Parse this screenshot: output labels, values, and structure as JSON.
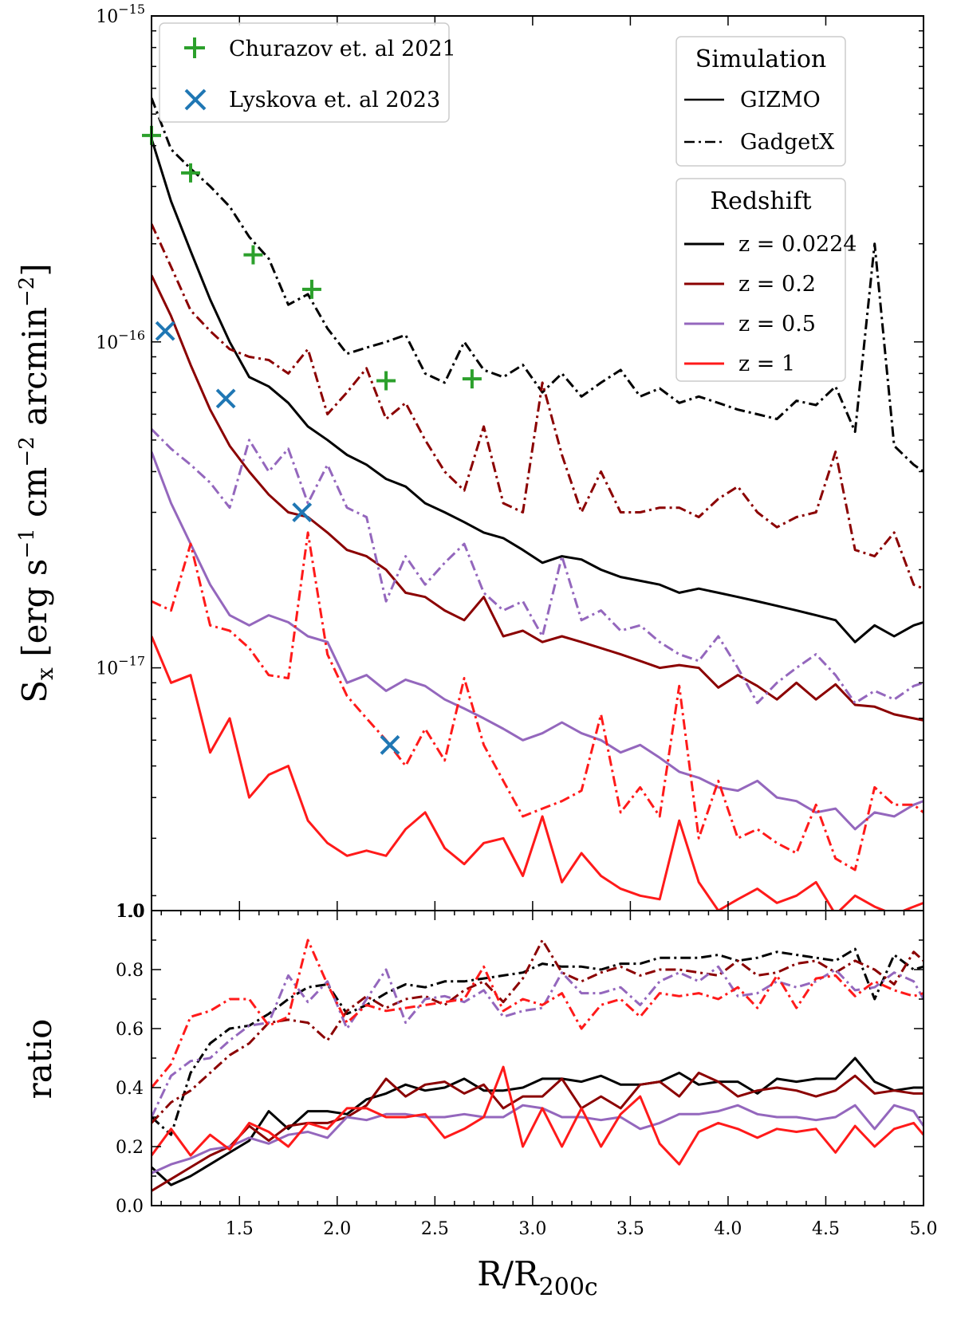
{
  "chart_data": [
    {
      "type": "line",
      "panel": "top",
      "yscale": "log",
      "xlabel": "R/R200c",
      "xlabel_main": "R/R",
      "xlabel_sub": "200c",
      "ylabel": "Sx [erg s^-1 cm^-2 arcmin^-2]",
      "ylabel_parts": {
        "s": "S",
        "s_sub": "x",
        "open": " [erg s",
        "exp1": "−1",
        "cm": " cm",
        "exp2": "−2",
        "arcmin": " arcmin",
        "exp3": "−2",
        "close": "]"
      },
      "xlim": [
        1.05,
        5.0
      ],
      "ylim": [
        1.8e-18,
        1e-15
      ],
      "yticks": [
        {
          "value": 1e-15,
          "base": "10",
          "exp": "−15"
        },
        {
          "value": 1e-16,
          "base": "10",
          "exp": "−16"
        },
        {
          "value": 1e-17,
          "base": "10",
          "exp": "−17"
        },
        {
          "value": 1.8e-18,
          "label": "1.0"
        }
      ],
      "x": [
        1.05,
        1.15,
        1.25,
        1.35,
        1.45,
        1.55,
        1.65,
        1.75,
        1.85,
        1.95,
        2.05,
        2.15,
        2.25,
        2.35,
        2.45,
        2.55,
        2.65,
        2.75,
        2.85,
        2.95,
        3.05,
        3.15,
        3.25,
        3.35,
        3.45,
        3.55,
        3.65,
        3.75,
        3.85,
        3.95,
        4.05,
        4.15,
        4.25,
        4.35,
        4.45,
        4.55,
        4.65,
        4.75,
        4.85,
        4.95,
        5.0
      ],
      "series": [
        {
          "name": "GIZMO z = 0.0224",
          "sim": "GIZMO",
          "redshift": "z = 0.0224",
          "color": "#000000",
          "dash": "solid",
          "values": [
            4.2e-16,
            2.7e-16,
            1.9e-16,
            1.35e-16,
            1e-16,
            7.8e-17,
            7.3e-17,
            6.5e-17,
            5.5e-17,
            5e-17,
            4.5e-17,
            4.2e-17,
            3.8e-17,
            3.6e-17,
            3.2e-17,
            3e-17,
            2.8e-17,
            2.6e-17,
            2.5e-17,
            2.3e-17,
            2.1e-17,
            2.2e-17,
            2.15e-17,
            2e-17,
            1.9e-17,
            1.85e-17,
            1.8e-17,
            1.7e-17,
            1.75e-17,
            1.7e-17,
            1.65e-17,
            1.6e-17,
            1.55e-17,
            1.5e-17,
            1.45e-17,
            1.4e-17,
            1.2e-17,
            1.35e-17,
            1.25e-17,
            1.35e-17,
            1.38e-17
          ]
        },
        {
          "name": "GadgetX z = 0.0224",
          "sim": "GadgetX",
          "redshift": "z = 0.0224",
          "color": "#000000",
          "dash": "dashdot",
          "values": [
            5.6e-16,
            3.9e-16,
            3.4e-16,
            3e-16,
            2.6e-16,
            2.1e-16,
            1.8e-16,
            1.3e-16,
            1.4e-16,
            1.1e-16,
            9.2e-17,
            9.6e-17,
            1e-16,
            1.05e-16,
            8e-17,
            7.5e-17,
            1e-16,
            8.2e-17,
            7.8e-17,
            8.5e-17,
            7e-17,
            8e-17,
            6.8e-17,
            7.5e-17,
            8.2e-17,
            6.8e-17,
            7.2e-17,
            6.5e-17,
            6.8e-17,
            6.5e-17,
            6.2e-17,
            6e-17,
            5.8e-17,
            6.6e-17,
            6.4e-17,
            7.3e-17,
            5.3e-17,
            2e-16,
            4.8e-17,
            4.2e-17,
            4e-17
          ]
        },
        {
          "name": "GIZMO z = 0.2",
          "sim": "GIZMO",
          "redshift": "z = 0.2",
          "color": "#8b0000",
          "dash": "solid",
          "values": [
            1.6e-16,
            1.2e-16,
            8.5e-17,
            6.2e-17,
            4.8e-17,
            4e-17,
            3.4e-17,
            3e-17,
            2.9e-17,
            2.6e-17,
            2.3e-17,
            2.2e-17,
            2e-17,
            1.7e-17,
            1.65e-17,
            1.5e-17,
            1.4e-17,
            1.65e-17,
            1.25e-17,
            1.3e-17,
            1.2e-17,
            1.25e-17,
            1.2e-17,
            1.15e-17,
            1.1e-17,
            1.05e-17,
            1e-17,
            1.02e-17,
            1e-17,
            8.7e-18,
            9.5e-18,
            8.8e-18,
            8e-18,
            9e-18,
            8e-18,
            8.9e-18,
            7.7e-18,
            7.6e-18,
            7.2e-18,
            7e-18,
            6.9e-18
          ]
        },
        {
          "name": "GadgetX z = 0.2",
          "sim": "GadgetX",
          "redshift": "z = 0.2",
          "color": "#8b0000",
          "dash": "dashdot",
          "values": [
            2.3e-16,
            1.7e-16,
            1.25e-16,
            1.08e-16,
            9.5e-17,
            9e-17,
            8.8e-17,
            8e-17,
            9.5e-17,
            6e-17,
            7e-17,
            8.3e-17,
            5.8e-17,
            6.5e-17,
            5e-17,
            4e-17,
            3.5e-17,
            5.5e-17,
            3.2e-17,
            3e-17,
            7.5e-17,
            4.5e-17,
            3e-17,
            4e-17,
            3e-17,
            3e-17,
            3.1e-17,
            3.1e-17,
            2.9e-17,
            3.3e-17,
            3.6e-17,
            3e-17,
            2.7e-17,
            2.9e-17,
            3e-17,
            4.6e-17,
            2.3e-17,
            2.2e-17,
            2.6e-17,
            1.8e-17,
            1.75e-17
          ]
        },
        {
          "name": "GIZMO z = 0.5",
          "sim": "GIZMO",
          "redshift": "z = 0.5",
          "color": "#9467bd",
          "dash": "solid",
          "values": [
            4.6e-17,
            3.2e-17,
            2.4e-17,
            1.8e-17,
            1.45e-17,
            1.35e-17,
            1.45e-17,
            1.38e-17,
            1.25e-17,
            1.2e-17,
            9e-18,
            9.5e-18,
            8.5e-18,
            9.2e-18,
            8.8e-18,
            8e-18,
            7.5e-18,
            7e-18,
            6.5e-18,
            6e-18,
            6.3e-18,
            6.8e-18,
            6.3e-18,
            6e-18,
            5.5e-18,
            5.8e-18,
            5.3e-18,
            4.8e-18,
            4.6e-18,
            4.3e-18,
            4.2e-18,
            4.5e-18,
            4e-18,
            3.9e-18,
            3.6e-18,
            3.7e-18,
            3.2e-18,
            3.6e-18,
            3.5e-18,
            3.8e-18,
            3.9e-18
          ]
        },
        {
          "name": "GadgetX z = 0.5",
          "sim": "GadgetX",
          "redshift": "z = 0.5",
          "color": "#9467bd",
          "dash": "dashdot",
          "values": [
            5.4e-17,
            4.7e-17,
            4.2e-17,
            3.7e-17,
            3.1e-17,
            5e-17,
            4e-17,
            4.7e-17,
            3.2e-17,
            4.2e-17,
            3.1e-17,
            2.9e-17,
            1.6e-17,
            2.2e-17,
            1.8e-17,
            2.1e-17,
            2.4e-17,
            1.7e-17,
            1.5e-17,
            1.6e-17,
            1.25e-17,
            2.2e-17,
            1.4e-17,
            1.5e-17,
            1.3e-17,
            1.35e-17,
            1.2e-17,
            1.1e-17,
            1.05e-17,
            1.25e-17,
            1e-17,
            7.8e-18,
            9e-18,
            1e-17,
            1.1e-17,
            9.5e-18,
            7.8e-18,
            8.5e-18,
            8e-18,
            8.8e-18,
            9e-18
          ]
        },
        {
          "name": "GIZMO z = 1",
          "sim": "GIZMO",
          "redshift": "z = 1",
          "color": "#ff1a1a",
          "dash": "solid",
          "values": [
            1.25e-17,
            9e-18,
            9.5e-18,
            5.5e-18,
            7e-18,
            4e-18,
            4.7e-18,
            5e-18,
            3.4e-18,
            2.9e-18,
            2.65e-18,
            2.75e-18,
            2.65e-18,
            3.2e-18,
            3.6e-18,
            2.8e-18,
            2.5e-18,
            2.9e-18,
            3e-18,
            2.3e-18,
            3.5e-18,
            2.2e-18,
            2.7e-18,
            2.3e-18,
            2.1e-18,
            2e-18,
            1.95e-18,
            3.4e-18,
            2.2e-18,
            1.8e-18,
            1.95e-18,
            2.1e-18,
            1.9e-18,
            2e-18,
            2.2e-18,
            1.75e-18,
            2e-18,
            1.85e-18,
            1.75e-18,
            1.85e-18,
            1.9e-18
          ]
        },
        {
          "name": "GadgetX z = 1",
          "sim": "GadgetX",
          "redshift": "z = 1",
          "color": "#ff1a1a",
          "dash": "dashdot",
          "values": [
            1.6e-17,
            1.5e-17,
            2.4e-17,
            1.35e-17,
            1.3e-17,
            1.15e-17,
            9.5e-18,
            9.3e-18,
            2.6e-17,
            1.1e-17,
            8.2e-18,
            7e-18,
            6e-18,
            5e-18,
            6.5e-18,
            5.2e-18,
            9.3e-18,
            5.8e-18,
            4.5e-18,
            3.5e-18,
            3.7e-18,
            3.9e-18,
            4.2e-18,
            7.2e-18,
            3.6e-18,
            4.3e-18,
            3.5e-18,
            8.8e-18,
            3e-18,
            4.5e-18,
            3e-18,
            3.2e-18,
            2.9e-18,
            2.7e-18,
            3.8e-18,
            2.6e-18,
            2.4e-18,
            4.3e-18,
            3.8e-18,
            3.8e-18,
            3.6e-18
          ]
        }
      ],
      "observations": [
        {
          "name": "Churazov et. al 2021",
          "marker": "plus",
          "color": "#2ca02c",
          "x": [
            1.05,
            1.25,
            1.57,
            1.87,
            2.25,
            2.69
          ],
          "y": [
            4.3e-16,
            3.3e-16,
            1.85e-16,
            1.45e-16,
            7.6e-17,
            7.7e-17
          ]
        },
        {
          "name": "Lyskova et. al 2023",
          "marker": "x",
          "color": "#1f77b4",
          "x": [
            1.12,
            1.43,
            1.82,
            2.27
          ],
          "y": [
            1.08e-16,
            6.7e-17,
            3e-17,
            5.8e-18
          ]
        }
      ],
      "legends": {
        "observations": {
          "location": "top-left",
          "entries": [
            "Churazov et. al 2021",
            "Lyskova et. al 2023"
          ]
        },
        "simulation": {
          "location": "top-right",
          "title": "Simulation",
          "entries": [
            "GIZMO",
            "GadgetX"
          ]
        },
        "redshift": {
          "location": "upper-right",
          "title": "Redshift",
          "entries": [
            "z = 0.0224",
            "z = 0.2",
            "z = 0.5",
            "z = 1"
          ],
          "colors": [
            "#000000",
            "#8b0000",
            "#9467bd",
            "#ff1a1a"
          ]
        }
      }
    },
    {
      "type": "line",
      "panel": "bottom",
      "ylabel": "ratio",
      "xlabel": "R/R200c",
      "xlim": [
        1.05,
        5.0
      ],
      "ylim": [
        0.0,
        1.0
      ],
      "xticks": [
        "1.5",
        "2.0",
        "2.5",
        "3.0",
        "3.5",
        "4.0",
        "4.5",
        "5.0"
      ],
      "xtick_values": [
        1.5,
        2.0,
        2.5,
        3.0,
        3.5,
        4.0,
        4.5,
        5.0
      ],
      "yticks": [
        "0.0",
        "0.2",
        "0.4",
        "0.6",
        "0.8",
        "1.0"
      ],
      "ytick_values": [
        0.0,
        0.2,
        0.4,
        0.6,
        0.8,
        1.0
      ],
      "x": [
        1.05,
        1.15,
        1.25,
        1.35,
        1.45,
        1.55,
        1.65,
        1.75,
        1.85,
        1.95,
        2.05,
        2.15,
        2.25,
        2.35,
        2.45,
        2.55,
        2.65,
        2.75,
        2.85,
        2.95,
        3.05,
        3.15,
        3.25,
        3.35,
        3.45,
        3.55,
        3.65,
        3.75,
        3.85,
        3.95,
        4.05,
        4.15,
        4.25,
        4.35,
        4.45,
        4.55,
        4.65,
        4.75,
        4.85,
        4.95,
        5.0
      ],
      "series": [
        {
          "name": "GIZMO z = 0.0224",
          "color": "#000000",
          "dash": "solid",
          "values": [
            0.13,
            0.07,
            0.1,
            0.14,
            0.18,
            0.22,
            0.32,
            0.26,
            0.32,
            0.32,
            0.31,
            0.36,
            0.38,
            0.41,
            0.39,
            0.4,
            0.43,
            0.39,
            0.39,
            0.4,
            0.43,
            0.43,
            0.42,
            0.44,
            0.41,
            0.41,
            0.42,
            0.45,
            0.41,
            0.42,
            0.42,
            0.38,
            0.43,
            0.42,
            0.43,
            0.43,
            0.5,
            0.42,
            0.39,
            0.4,
            0.4
          ]
        },
        {
          "name": "GadgetX z = 0.0224",
          "color": "#000000",
          "dash": "dashdot",
          "values": [
            0.3,
            0.24,
            0.45,
            0.55,
            0.6,
            0.61,
            0.65,
            0.7,
            0.74,
            0.75,
            0.65,
            0.68,
            0.72,
            0.75,
            0.74,
            0.76,
            0.76,
            0.77,
            0.78,
            0.79,
            0.82,
            0.81,
            0.81,
            0.8,
            0.82,
            0.82,
            0.84,
            0.84,
            0.84,
            0.85,
            0.83,
            0.84,
            0.86,
            0.85,
            0.84,
            0.83,
            0.87,
            0.7,
            0.85,
            0.8,
            0.81
          ]
        },
        {
          "name": "GIZMO z = 0.2",
          "color": "#8b0000",
          "dash": "solid",
          "values": [
            0.05,
            0.09,
            0.13,
            0.17,
            0.2,
            0.27,
            0.22,
            0.27,
            0.28,
            0.28,
            0.3,
            0.34,
            0.43,
            0.37,
            0.41,
            0.42,
            0.38,
            0.41,
            0.33,
            0.37,
            0.37,
            0.43,
            0.33,
            0.37,
            0.33,
            0.41,
            0.42,
            0.37,
            0.45,
            0.42,
            0.37,
            0.39,
            0.4,
            0.39,
            0.37,
            0.39,
            0.44,
            0.38,
            0.39,
            0.38,
            0.38
          ]
        },
        {
          "name": "GadgetX z = 0.2",
          "color": "#8b0000",
          "dash": "dashdot",
          "values": [
            0.28,
            0.35,
            0.39,
            0.45,
            0.51,
            0.55,
            0.62,
            0.63,
            0.62,
            0.56,
            0.66,
            0.71,
            0.67,
            0.7,
            0.71,
            0.68,
            0.73,
            0.76,
            0.69,
            0.77,
            0.9,
            0.79,
            0.76,
            0.79,
            0.81,
            0.78,
            0.8,
            0.8,
            0.79,
            0.78,
            0.83,
            0.78,
            0.79,
            0.82,
            0.83,
            0.79,
            0.83,
            0.8,
            0.75,
            0.86,
            0.83
          ]
        },
        {
          "name": "GIZMO z = 0.5",
          "color": "#9467bd",
          "dash": "solid",
          "values": [
            0.11,
            0.14,
            0.16,
            0.19,
            0.2,
            0.23,
            0.21,
            0.24,
            0.25,
            0.23,
            0.3,
            0.29,
            0.31,
            0.31,
            0.3,
            0.3,
            0.31,
            0.3,
            0.3,
            0.34,
            0.33,
            0.3,
            0.3,
            0.29,
            0.3,
            0.26,
            0.28,
            0.31,
            0.31,
            0.32,
            0.34,
            0.31,
            0.3,
            0.3,
            0.29,
            0.3,
            0.34,
            0.26,
            0.34,
            0.32,
            0.27
          ]
        },
        {
          "name": "GadgetX z = 0.5",
          "color": "#9467bd",
          "dash": "dashdot",
          "values": [
            0.3,
            0.44,
            0.49,
            0.5,
            0.56,
            0.61,
            0.62,
            0.78,
            0.69,
            0.76,
            0.6,
            0.7,
            0.8,
            0.62,
            0.7,
            0.71,
            0.69,
            0.73,
            0.64,
            0.66,
            0.67,
            0.79,
            0.72,
            0.72,
            0.74,
            0.68,
            0.76,
            0.79,
            0.76,
            0.81,
            0.71,
            0.72,
            0.76,
            0.74,
            0.76,
            0.8,
            0.73,
            0.74,
            0.79,
            0.76,
            0.7
          ]
        },
        {
          "name": "GIZMO z = 1",
          "color": "#ff1a1a",
          "dash": "solid",
          "values": [
            0.17,
            0.26,
            0.17,
            0.24,
            0.19,
            0.28,
            0.25,
            0.2,
            0.28,
            0.26,
            0.33,
            0.33,
            0.3,
            0.3,
            0.31,
            0.23,
            0.26,
            0.3,
            0.47,
            0.2,
            0.33,
            0.2,
            0.33,
            0.2,
            0.31,
            0.37,
            0.21,
            0.14,
            0.25,
            0.28,
            0.26,
            0.23,
            0.26,
            0.25,
            0.26,
            0.18,
            0.27,
            0.2,
            0.26,
            0.28,
            0.24
          ]
        },
        {
          "name": "GadgetX z = 1",
          "color": "#ff1a1a",
          "dash": "dashdot",
          "values": [
            0.4,
            0.48,
            0.64,
            0.66,
            0.7,
            0.7,
            0.61,
            0.64,
            0.9,
            0.75,
            0.62,
            0.68,
            0.66,
            0.67,
            0.68,
            0.69,
            0.7,
            0.81,
            0.66,
            0.7,
            0.68,
            0.72,
            0.6,
            0.68,
            0.7,
            0.64,
            0.72,
            0.71,
            0.72,
            0.7,
            0.74,
            0.67,
            0.78,
            0.67,
            0.77,
            0.78,
            0.71,
            0.76,
            0.73,
            0.71,
            0.72
          ]
        }
      ]
    }
  ]
}
